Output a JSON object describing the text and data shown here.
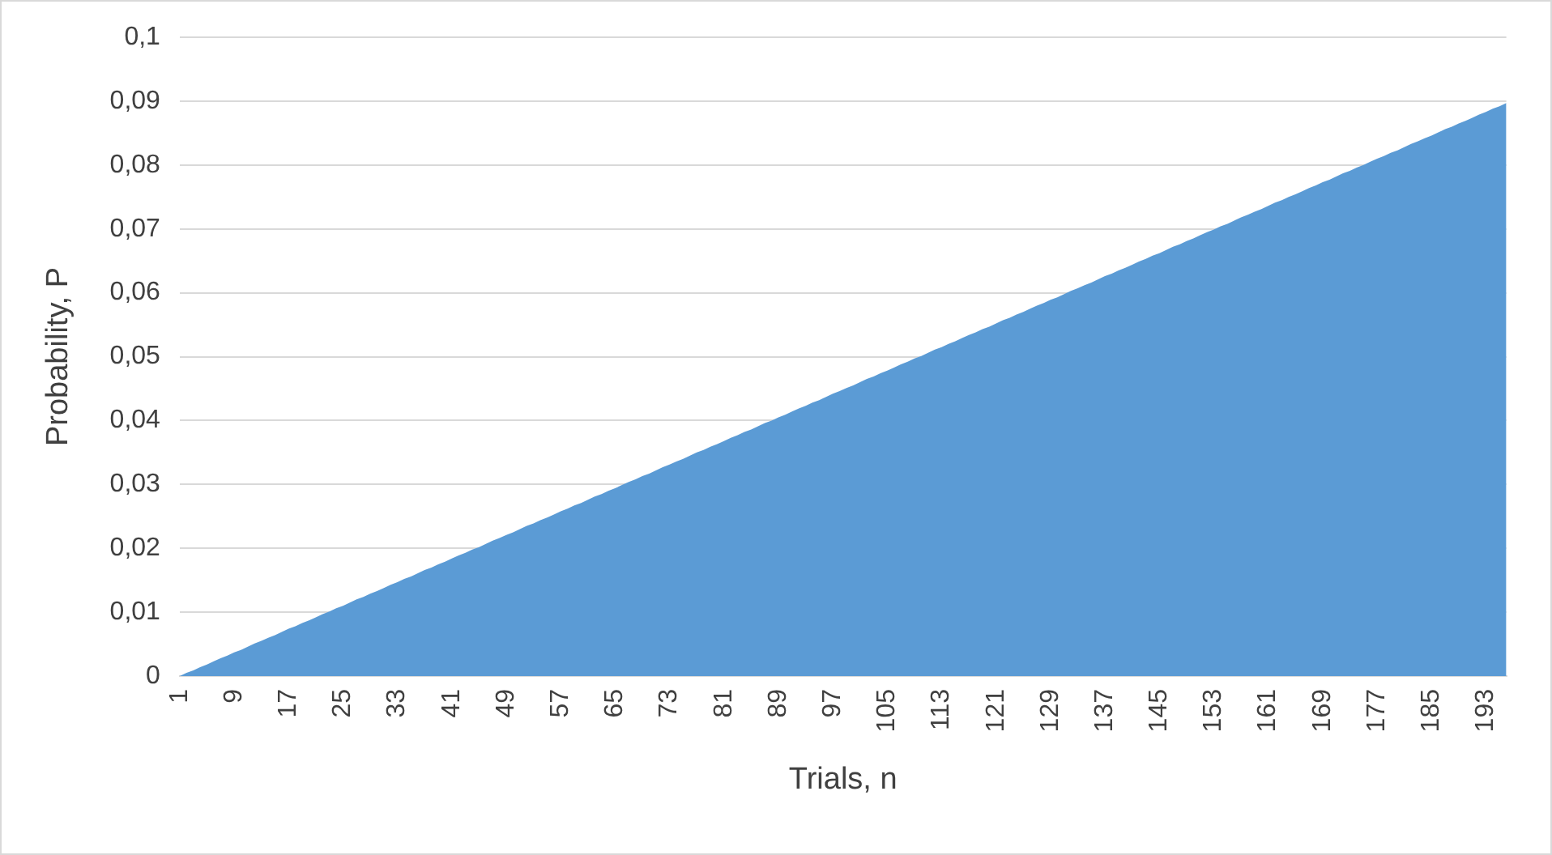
{
  "chart_data": {
    "type": "area",
    "xlabel": "Trials, n",
    "ylabel": "Probability, P",
    "categories": [
      "1",
      null,
      null,
      null,
      null,
      null,
      null,
      null,
      "9",
      null,
      null,
      null,
      null,
      null,
      null,
      null,
      "17",
      null,
      null,
      null,
      null,
      null,
      null,
      null,
      "25",
      null,
      null,
      null,
      null,
      null,
      null,
      null,
      "33",
      null,
      null,
      null,
      null,
      null,
      null,
      null,
      "41",
      null,
      null,
      null,
      null,
      null,
      null,
      null,
      "49",
      null,
      null,
      null,
      null,
      null,
      null,
      null,
      "57",
      null,
      null,
      null,
      null,
      null,
      null,
      null,
      "65",
      null,
      null,
      null,
      null,
      null,
      null,
      null,
      "73",
      null,
      null,
      null,
      null,
      null,
      null,
      null,
      "81",
      null,
      null,
      null,
      null,
      null,
      null,
      null,
      "89",
      null,
      null,
      null,
      null,
      null,
      null,
      null,
      "97",
      null,
      null,
      null,
      null,
      null,
      null,
      null,
      "105",
      null,
      null,
      null,
      null,
      null,
      null,
      null,
      "113",
      null,
      null,
      null,
      null,
      null,
      null,
      null,
      "121",
      null,
      null,
      null,
      null,
      null,
      null,
      null,
      "129",
      null,
      null,
      null,
      null,
      null,
      null,
      null,
      "137",
      null,
      null,
      null,
      null,
      null,
      null,
      null,
      "145",
      null,
      null,
      null,
      null,
      null,
      null,
      null,
      "153",
      null,
      null,
      null,
      null,
      null,
      null,
      null,
      "161",
      null,
      null,
      null,
      null,
      null,
      null,
      null,
      "169",
      null,
      null,
      null,
      null,
      null,
      null,
      null,
      "177",
      null,
      null,
      null,
      null,
      null,
      null,
      null,
      "185",
      null,
      null,
      null,
      null,
      null,
      null,
      null,
      "193",
      null,
      null,
      null
    ],
    "series": [
      {
        "color": "#5b9bd5",
        "values": [
          0,
          0.0005,
          0.0009,
          0.0014,
          0.0018,
          0.0023,
          0.0028,
          0.0032,
          0.0037,
          0.0041,
          0.0046,
          0.0051,
          0.0055,
          0.006,
          0.0064,
          0.0069,
          0.0074,
          0.0078,
          0.0083,
          0.0087,
          0.0092,
          0.0097,
          0.0101,
          0.0106,
          0.011,
          0.0115,
          0.012,
          0.0124,
          0.0129,
          0.0133,
          0.0138,
          0.0143,
          0.0147,
          0.0152,
          0.0156,
          0.0161,
          0.0166,
          0.017,
          0.0175,
          0.0179,
          0.0184,
          0.0189,
          0.0193,
          0.0198,
          0.0202,
          0.0207,
          0.0212,
          0.0216,
          0.0221,
          0.0225,
          0.023,
          0.0235,
          0.0239,
          0.0244,
          0.0248,
          0.0253,
          0.0258,
          0.0262,
          0.0267,
          0.0271,
          0.0276,
          0.0281,
          0.0285,
          0.029,
          0.0294,
          0.0299,
          0.0304,
          0.0308,
          0.0313,
          0.0317,
          0.0322,
          0.0327,
          0.0331,
          0.0336,
          0.034,
          0.0345,
          0.035,
          0.0354,
          0.0359,
          0.0363,
          0.0368,
          0.0373,
          0.0377,
          0.0382,
          0.0386,
          0.0391,
          0.0396,
          0.04,
          0.0405,
          0.0409,
          0.0414,
          0.0419,
          0.0423,
          0.0428,
          0.0432,
          0.0437,
          0.0442,
          0.0446,
          0.0451,
          0.0455,
          0.046,
          0.0465,
          0.0469,
          0.0474,
          0.0478,
          0.0483,
          0.0488,
          0.0492,
          0.0497,
          0.0501,
          0.0506,
          0.0511,
          0.0515,
          0.052,
          0.0524,
          0.0529,
          0.0534,
          0.0538,
          0.0543,
          0.0547,
          0.0552,
          0.0557,
          0.0561,
          0.0566,
          0.057,
          0.0575,
          0.058,
          0.0584,
          0.0589,
          0.0593,
          0.0598,
          0.0603,
          0.0607,
          0.0612,
          0.0616,
          0.0621,
          0.0626,
          0.063,
          0.0635,
          0.0639,
          0.0644,
          0.0649,
          0.0653,
          0.0658,
          0.0662,
          0.0667,
          0.0672,
          0.0676,
          0.0681,
          0.0685,
          0.069,
          0.0695,
          0.0699,
          0.0704,
          0.0708,
          0.0713,
          0.0718,
          0.0722,
          0.0727,
          0.0731,
          0.0736,
          0.0741,
          0.0745,
          0.075,
          0.0754,
          0.0759,
          0.0764,
          0.0768,
          0.0773,
          0.0777,
          0.0782,
          0.0787,
          0.0791,
          0.0796,
          0.08,
          0.0805,
          0.081,
          0.0814,
          0.0819,
          0.0823,
          0.0828,
          0.0833,
          0.0837,
          0.0842,
          0.0846,
          0.0851,
          0.0856,
          0.086,
          0.0865,
          0.0869,
          0.0874,
          0.0879,
          0.0883,
          0.0888,
          0.0892,
          0.0897
        ]
      }
    ],
    "ylim": [
      0,
      0.1
    ],
    "yticks": [
      0,
      {
        "value": 0.01,
        "label": "0,01"
      },
      {
        "value": 0.02,
        "label": "0,02"
      },
      {
        "value": 0.03,
        "label": "0,03"
      },
      {
        "value": 0.04,
        "label": "0,04"
      },
      {
        "value": 0.05,
        "label": "0,05"
      },
      {
        "value": 0.06,
        "label": "0,06"
      },
      {
        "value": 0.07,
        "label": "0,07"
      },
      {
        "value": 0.08,
        "label": "0,08"
      },
      {
        "value": 0.09,
        "label": "0,09"
      },
      {
        "value": 0.1,
        "label": "0,1"
      }
    ],
    "grid": "y",
    "legend": false
  }
}
